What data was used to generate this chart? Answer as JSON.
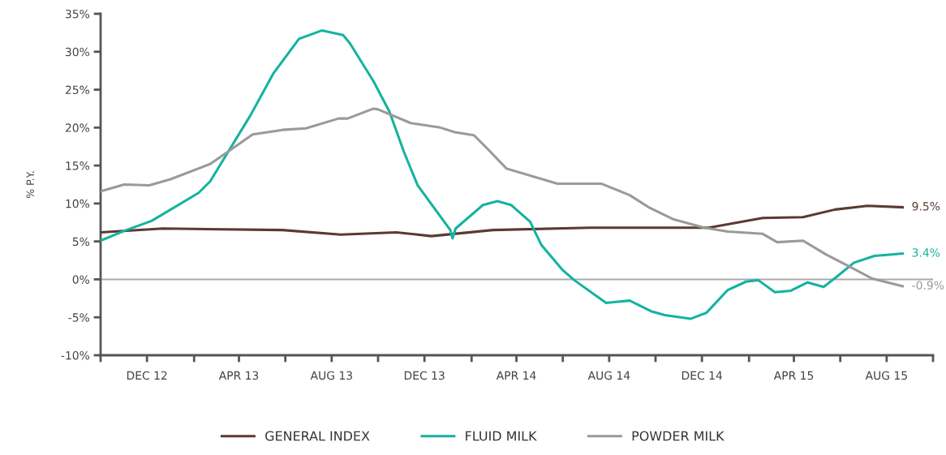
{
  "chart_data": {
    "type": "line",
    "ylabel": "% P.Y.",
    "xlim": [
      "2012-10-01",
      "2015-10-01"
    ],
    "xticks": [
      {
        "value": "2012-10-01",
        "label": null
      },
      {
        "value": "2012-12-01",
        "label": "DEC 12"
      },
      {
        "value": "2013-02-01",
        "label": null
      },
      {
        "value": "2013-04-01",
        "label": "APR 13"
      },
      {
        "value": "2013-06-01",
        "label": null
      },
      {
        "value": "2013-08-01",
        "label": "AUG 13"
      },
      {
        "value": "2013-10-01",
        "label": null
      },
      {
        "value": "2013-12-01",
        "label": "DEC 13"
      },
      {
        "value": "2014-02-01",
        "label": null
      },
      {
        "value": "2014-04-01",
        "label": "APR 14"
      },
      {
        "value": "2014-06-01",
        "label": null
      },
      {
        "value": "2014-08-01",
        "label": "AUG 14"
      },
      {
        "value": "2014-10-01",
        "label": null
      },
      {
        "value": "2014-12-01",
        "label": "DEC 14"
      },
      {
        "value": "2015-02-01",
        "label": null
      },
      {
        "value": "2015-04-01",
        "label": "APR 15"
      },
      {
        "value": "2015-06-01",
        "label": null
      },
      {
        "value": "2015-08-01",
        "label": "AUG 15"
      },
      {
        "value": "2015-10-01",
        "label": null
      }
    ],
    "ylim": [
      -10,
      35
    ],
    "yticks": [
      {
        "value": -10,
        "label": "-10%"
      },
      {
        "value": -5,
        "label": "-5%"
      },
      {
        "value": 0,
        "label": "0%"
      },
      {
        "value": 5,
        "label": "5%"
      },
      {
        "value": 10,
        "label": "10%"
      },
      {
        "value": 15,
        "label": "15%"
      },
      {
        "value": 20,
        "label": "20%"
      },
      {
        "value": 25,
        "label": "25%"
      },
      {
        "value": 30,
        "label": "30%"
      },
      {
        "value": 35,
        "label": "35%"
      }
    ],
    "grid": false,
    "legend": "bottom",
    "marker": "none",
    "line_style": "solid",
    "ref_lines": [
      {
        "axis": "y",
        "value": 0,
        "color": "#aaaaaa"
      }
    ],
    "series": [
      {
        "name": "GENERAL INDEX",
        "color": "#5b3a32",
        "x": [
          "2012-10-01",
          "2012-12-22",
          "2013-05-28",
          "2013-08-13",
          "2013-10-25",
          "2013-12-10",
          "2014-03-01",
          "2014-07-07",
          "2014-09-22",
          "2014-12-10",
          "2015-02-19",
          "2015-04-13",
          "2015-05-25",
          "2015-07-07",
          "2015-08-22"
        ],
        "values": [
          6.2,
          6.7,
          6.5,
          5.9,
          6.2,
          5.7,
          6.5,
          6.8,
          6.8,
          6.8,
          8.1,
          8.2,
          9.2,
          9.7,
          9.5
        ],
        "value_labels": [
          null,
          null,
          null,
          null,
          null,
          null,
          null,
          null,
          null,
          null,
          null,
          null,
          null,
          null,
          "9.5%"
        ]
      },
      {
        "name": "FLUID MILK",
        "color": "#14b3a0",
        "x": [
          "2012-10-01",
          "2012-11-01",
          "2012-12-07",
          "2013-02-07",
          "2013-02-22",
          "2013-04-16",
          "2013-05-16",
          "2013-06-19",
          "2013-07-19",
          "2013-08-16",
          "2013-08-25",
          "2013-09-25",
          "2013-10-16",
          "2013-11-04",
          "2013-11-22",
          "2014-01-04",
          "2014-01-07",
          "2014-01-11",
          "2014-02-16",
          "2014-03-07",
          "2014-03-25",
          "2014-04-19",
          "2014-05-04",
          "2014-06-01",
          "2014-06-16",
          "2014-07-28",
          "2014-08-28",
          "2014-09-25",
          "2014-10-13",
          "2014-11-16",
          "2014-12-07",
          "2015-01-04",
          "2015-01-28",
          "2015-02-13",
          "2015-03-07",
          "2015-03-28",
          "2015-04-19",
          "2015-05-10",
          "2015-05-28",
          "2015-06-19",
          "2015-07-16",
          "2015-08-22"
        ],
        "values": [
          5.1,
          6.4,
          7.7,
          11.4,
          12.9,
          21.6,
          27.1,
          31.7,
          32.8,
          32.2,
          31.1,
          26.1,
          22.1,
          16.8,
          12.4,
          6.5,
          5.4,
          6.7,
          9.8,
          10.3,
          9.8,
          7.6,
          4.5,
          1.2,
          -0.1,
          -3.1,
          -2.8,
          -4.2,
          -4.7,
          -5.2,
          -4.4,
          -1.4,
          -0.3,
          -0.1,
          -1.7,
          -1.5,
          -0.4,
          -1.0,
          0.4,
          2.2,
          3.1,
          3.4
        ],
        "value_labels": [
          null,
          null,
          null,
          null,
          null,
          null,
          null,
          null,
          null,
          null,
          null,
          null,
          null,
          null,
          null,
          null,
          null,
          null,
          null,
          null,
          null,
          null,
          null,
          null,
          null,
          null,
          null,
          null,
          null,
          null,
          null,
          null,
          null,
          null,
          null,
          null,
          null,
          null,
          null,
          null,
          null,
          "3.4%"
        ]
      },
      {
        "name": "POWDER MILK",
        "color": "#9a9a9a",
        "x": [
          "2012-10-01",
          "2012-11-01",
          "2012-12-04",
          "2013-01-01",
          "2013-02-22",
          "2013-03-13",
          "2013-04-19",
          "2013-05-28",
          "2013-06-28",
          "2013-08-10",
          "2013-08-22",
          "2013-09-25",
          "2013-10-01",
          "2013-11-13",
          "2013-12-22",
          "2014-01-10",
          "2014-02-04",
          "2014-02-22",
          "2014-03-19",
          "2014-05-25",
          "2014-07-22",
          "2014-08-28",
          "2014-09-22",
          "2014-10-25",
          "2014-12-04",
          "2015-01-04",
          "2015-02-19",
          "2015-03-10",
          "2015-04-13",
          "2015-05-13",
          "2015-06-13",
          "2015-07-13",
          "2015-08-22"
        ],
        "values": [
          11.6,
          12.5,
          12.4,
          13.2,
          15.2,
          16.5,
          19.1,
          19.7,
          19.9,
          21.2,
          21.2,
          22.5,
          22.4,
          20.6,
          20.0,
          19.4,
          19.0,
          17.2,
          14.6,
          12.6,
          12.6,
          11.1,
          9.5,
          7.9,
          6.8,
          6.3,
          6.0,
          4.9,
          5.1,
          3.3,
          1.7,
          0.1,
          -0.9
        ],
        "value_labels": [
          null,
          null,
          null,
          null,
          null,
          null,
          null,
          null,
          null,
          null,
          null,
          null,
          null,
          null,
          null,
          null,
          null,
          null,
          null,
          null,
          null,
          null,
          null,
          null,
          null,
          null,
          null,
          null,
          null,
          null,
          null,
          null,
          "-0.9%"
        ]
      }
    ]
  }
}
